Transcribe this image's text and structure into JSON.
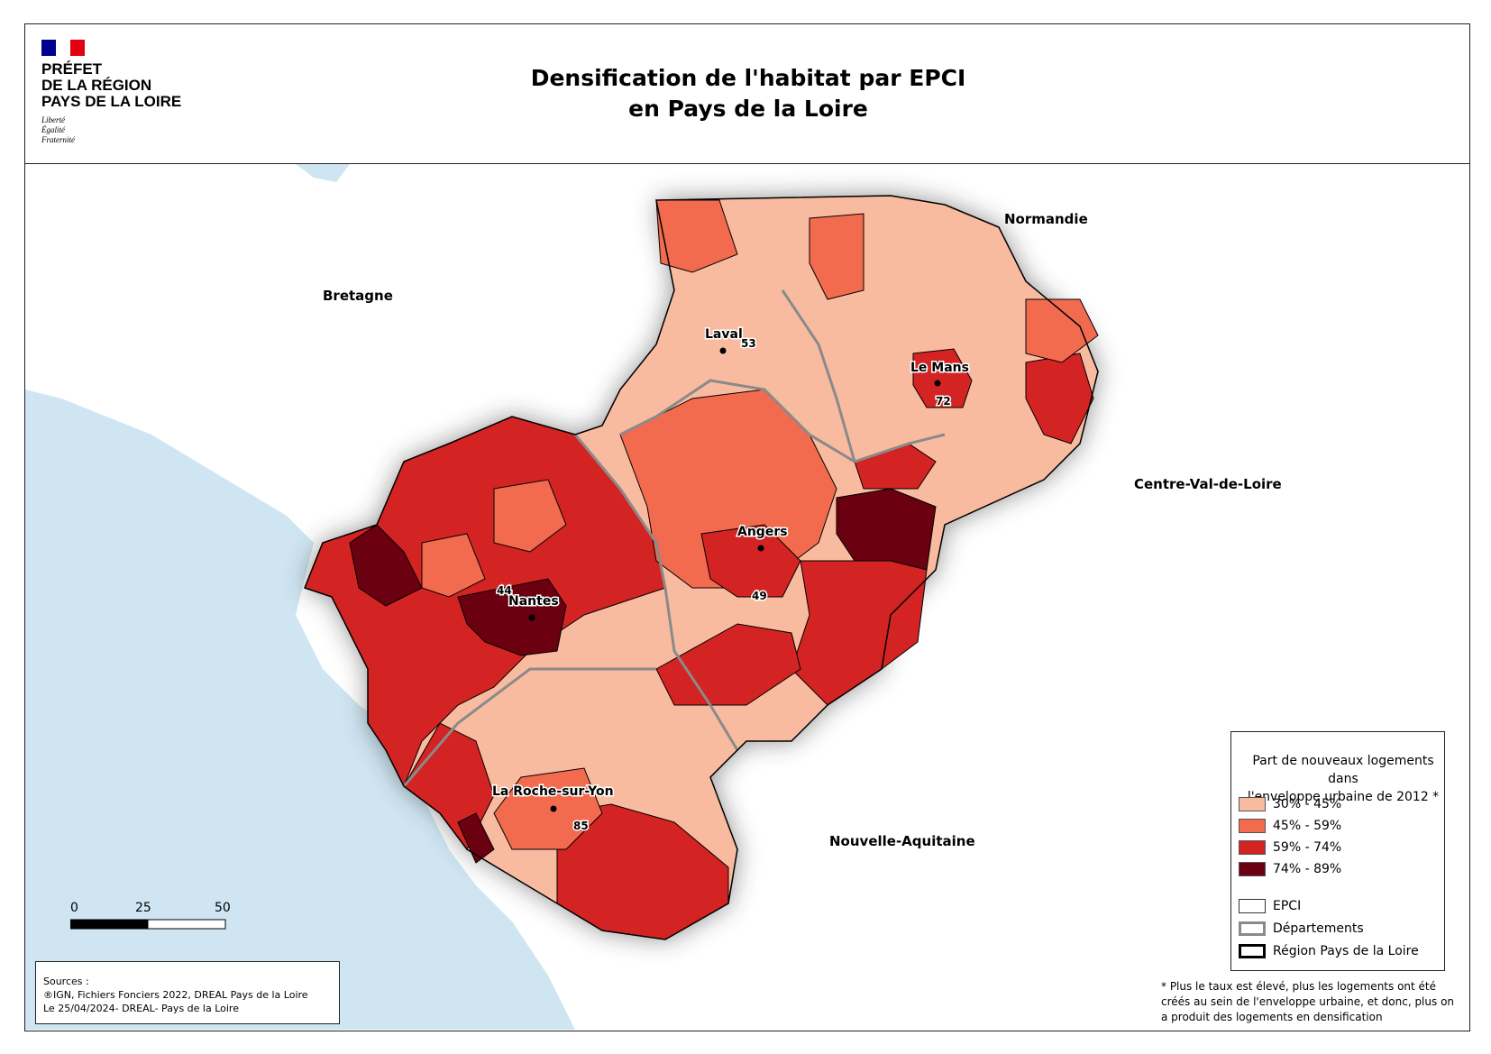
{
  "header": {
    "logo_lines": [
      "PRÉFET",
      "DE LA RÉGION",
      "PAYS DE LA LOIRE"
    ],
    "motto": [
      "Liberté",
      "Égalité",
      "Fraternité"
    ],
    "title_line1": "Densification de l'habitat par EPCI",
    "title_line2": "en Pays de la Loire"
  },
  "neighbors": {
    "bretagne": "Bretagne",
    "normandie": "Normandie",
    "centre": "Centre-Val-de-Loire",
    "aquitaine": "Nouvelle-Aquitaine"
  },
  "cities": {
    "laval": "Laval",
    "le_mans": "Le Mans",
    "angers": "Angers",
    "nantes": "Nantes",
    "la_roche": "La Roche-sur-Yon"
  },
  "departments": {
    "mayenne": "53",
    "sarthe": "72",
    "maine_et_loire": "49",
    "loire_atlantique": "44",
    "vendee": "85"
  },
  "colors": {
    "c1": "#f9bba0",
    "c2": "#f36b4f",
    "c3": "#d42323",
    "c4": "#6b0011",
    "sea": "#cfe6f2",
    "land": "#ffffff",
    "border_dep": "#8a8a8a"
  },
  "legend": {
    "title_line1": "Part de nouveaux logements dans",
    "title_line2": "l'enveloppe urbaine de 2012 *",
    "classes": [
      "30% - 45%",
      "45% - 59%",
      "59% - 74%",
      "74% - 89%"
    ],
    "epci": "EPCI",
    "departements": "Départements",
    "region": "Région Pays de la Loire"
  },
  "scale": {
    "ticks": [
      "0",
      "25",
      "50 km"
    ]
  },
  "sources": {
    "line1": "Sources :",
    "line2": "®IGN, Fichiers Fonciers 2022, DREAL Pays de la Loire",
    "line3": "Le 25/04/2024- DREAL- Pays de la Loire"
  },
  "footnote": {
    "line1": "* Plus le taux est élevé, plus les logements ont été",
    "line2": "créés au sein de l'enveloppe urbaine, et donc, plus on",
    "line3": "a produit des logements en densification"
  }
}
